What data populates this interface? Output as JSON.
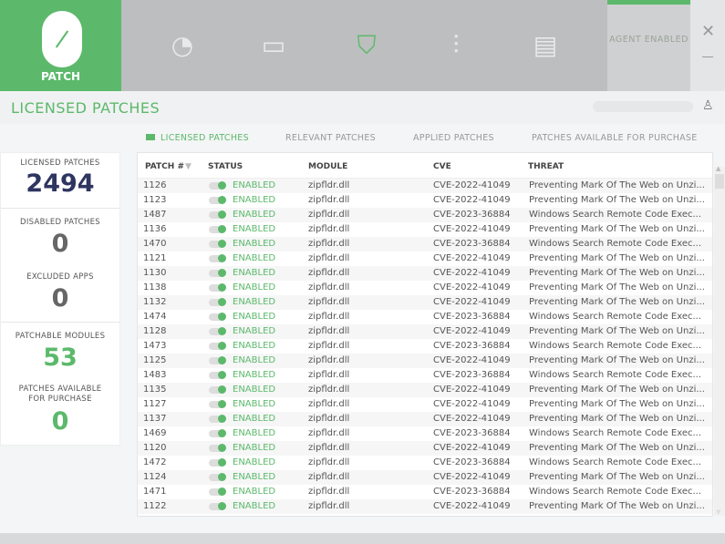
{
  "nav": {
    "brand_label": "PATCH",
    "items": [
      {
        "icon": "speedometer-icon",
        "glyph": "◔"
      },
      {
        "icon": "window-icon",
        "glyph": "▭"
      },
      {
        "icon": "shield-icon",
        "glyph": "⛉",
        "active": true
      },
      {
        "icon": "sliders-icon",
        "glyph": "⫶"
      },
      {
        "icon": "clipboard-icon",
        "glyph": "▤"
      }
    ],
    "agent_status": "AGENT ENABLED",
    "close_glyph": "✕"
  },
  "header": {
    "title": "LICENSED PATCHES",
    "user_glyph": "♙"
  },
  "tabs": [
    {
      "label": "LICENSED PATCHES",
      "active": true
    },
    {
      "label": "RELEVANT PATCHES"
    },
    {
      "label": "APPLIED PATCHES"
    },
    {
      "label": "PATCHES AVAILABLE FOR PURCHASE"
    }
  ],
  "stats": {
    "licensed_label": "LICENSED PATCHES",
    "licensed_value": "2494",
    "disabled_label": "DISABLED PATCHES",
    "disabled_value": "0",
    "excluded_label": "EXCLUDED APPS",
    "excluded_value": "0",
    "modules_label": "PATCHABLE MODULES",
    "modules_value": "53",
    "purchase_label": "PATCHES AVAILABLE FOR PURCHASE",
    "purchase_value": "0"
  },
  "colors": {
    "accent": "#5cb96b",
    "dark_value": "#2e3560"
  },
  "table": {
    "columns": [
      "PATCH #",
      "STATUS",
      "MODULE",
      "CVE",
      "THREAT"
    ],
    "rows": [
      [
        "1126",
        "ENABLED",
        "zipfldr.dll",
        "CVE-2022-41049",
        "Preventing Mark Of The Web on Unzi..."
      ],
      [
        "1123",
        "ENABLED",
        "zipfldr.dll",
        "CVE-2022-41049",
        "Preventing Mark Of The Web on Unzi..."
      ],
      [
        "1487",
        "ENABLED",
        "zipfldr.dll",
        "CVE-2023-36884",
        "Windows Search Remote Code Exec..."
      ],
      [
        "1136",
        "ENABLED",
        "zipfldr.dll",
        "CVE-2022-41049",
        "Preventing Mark Of The Web on Unzi..."
      ],
      [
        "1470",
        "ENABLED",
        "zipfldr.dll",
        "CVE-2023-36884",
        "Windows Search Remote Code Exec..."
      ],
      [
        "1121",
        "ENABLED",
        "zipfldr.dll",
        "CVE-2022-41049",
        "Preventing Mark Of The Web on Unzi..."
      ],
      [
        "1130",
        "ENABLED",
        "zipfldr.dll",
        "CVE-2022-41049",
        "Preventing Mark Of The Web on Unzi..."
      ],
      [
        "1138",
        "ENABLED",
        "zipfldr.dll",
        "CVE-2022-41049",
        "Preventing Mark Of The Web on Unzi..."
      ],
      [
        "1132",
        "ENABLED",
        "zipfldr.dll",
        "CVE-2022-41049",
        "Preventing Mark Of The Web on Unzi..."
      ],
      [
        "1474",
        "ENABLED",
        "zipfldr.dll",
        "CVE-2023-36884",
        "Windows Search Remote Code Exec..."
      ],
      [
        "1128",
        "ENABLED",
        "zipfldr.dll",
        "CVE-2022-41049",
        "Preventing Mark Of The Web on Unzi..."
      ],
      [
        "1473",
        "ENABLED",
        "zipfldr.dll",
        "CVE-2023-36884",
        "Windows Search Remote Code Exec..."
      ],
      [
        "1125",
        "ENABLED",
        "zipfldr.dll",
        "CVE-2022-41049",
        "Preventing Mark Of The Web on Unzi..."
      ],
      [
        "1483",
        "ENABLED",
        "zipfldr.dll",
        "CVE-2023-36884",
        "Windows Search Remote Code Exec..."
      ],
      [
        "1135",
        "ENABLED",
        "zipfldr.dll",
        "CVE-2022-41049",
        "Preventing Mark Of The Web on Unzi..."
      ],
      [
        "1127",
        "ENABLED",
        "zipfldr.dll",
        "CVE-2022-41049",
        "Preventing Mark Of The Web on Unzi..."
      ],
      [
        "1137",
        "ENABLED",
        "zipfldr.dll",
        "CVE-2022-41049",
        "Preventing Mark Of The Web on Unzi..."
      ],
      [
        "1469",
        "ENABLED",
        "zipfldr.dll",
        "CVE-2023-36884",
        "Windows Search Remote Code Exec..."
      ],
      [
        "1120",
        "ENABLED",
        "zipfldr.dll",
        "CVE-2022-41049",
        "Preventing Mark Of The Web on Unzi..."
      ],
      [
        "1472",
        "ENABLED",
        "zipfldr.dll",
        "CVE-2023-36884",
        "Windows Search Remote Code Exec..."
      ],
      [
        "1124",
        "ENABLED",
        "zipfldr.dll",
        "CVE-2022-41049",
        "Preventing Mark Of The Web on Unzi..."
      ],
      [
        "1471",
        "ENABLED",
        "zipfldr.dll",
        "CVE-2023-36884",
        "Windows Search Remote Code Exec..."
      ],
      [
        "1122",
        "ENABLED",
        "zipfldr.dll",
        "CVE-2022-41049",
        "Preventing Mark Of The Web on Unzi..."
      ]
    ]
  }
}
